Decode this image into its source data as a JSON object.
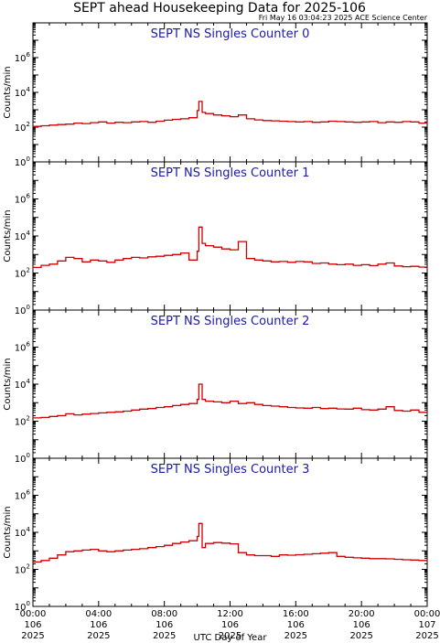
{
  "header": {
    "title": "SEPT ahead Housekeeping Data for 2025-106",
    "timestamp": "Fri May 16 03:04:23 2025 ACE Science Center"
  },
  "colors": {
    "series": "#cc0000",
    "panel_title": "#1a1aa6",
    "axis": "#000000"
  },
  "chart_data": [
    {
      "type": "line",
      "title": "SEPT NS Singles Counter 0",
      "ylabel": "Counts/min",
      "yscale": "log",
      "ylim": [
        1,
        100000000
      ],
      "yticks": [
        {
          "value": 1,
          "base": "10",
          "exp": "0"
        },
        {
          "value": 100,
          "base": "10",
          "exp": "2"
        },
        {
          "value": 10000,
          "base": "10",
          "exp": "4"
        },
        {
          "value": 1000000,
          "base": "10",
          "exp": "6"
        }
      ],
      "xlim": [
        0,
        24
      ],
      "x": [
        0,
        0.5,
        1,
        1.5,
        2,
        2.5,
        3,
        3.5,
        4,
        4.5,
        5,
        5.5,
        6,
        6.5,
        7,
        7.5,
        8,
        8.5,
        9,
        9.5,
        10,
        10.1,
        10.3,
        10.5,
        11,
        11.5,
        12,
        12.5,
        13,
        13.5,
        14,
        14.5,
        15,
        15.5,
        16,
        16.5,
        17,
        17.5,
        18,
        18.5,
        19,
        19.5,
        20,
        20.5,
        21,
        21.5,
        22,
        22.5,
        23,
        23.5
      ],
      "y": [
        110,
        120,
        130,
        140,
        150,
        170,
        160,
        180,
        200,
        170,
        190,
        180,
        200,
        210,
        190,
        220,
        250,
        280,
        300,
        350,
        900,
        3000,
        700,
        600,
        500,
        450,
        400,
        500,
        300,
        260,
        240,
        230,
        220,
        210,
        200,
        210,
        190,
        200,
        220,
        210,
        200,
        190,
        200,
        210,
        180,
        200,
        190,
        210,
        200,
        170
      ]
    },
    {
      "type": "line",
      "title": "SEPT NS Singles Counter 1",
      "ylabel": "Counts/min",
      "yscale": "log",
      "ylim": [
        1,
        100000000
      ],
      "yticks": [
        {
          "value": 1,
          "base": "10",
          "exp": "0"
        },
        {
          "value": 100,
          "base": "10",
          "exp": "2"
        },
        {
          "value": 10000,
          "base": "10",
          "exp": "4"
        },
        {
          "value": 1000000,
          "base": "10",
          "exp": "6"
        }
      ],
      "xlim": [
        0,
        24
      ],
      "x": [
        0,
        0.5,
        1,
        1.5,
        2,
        2.5,
        3,
        3.5,
        4,
        4.5,
        5,
        5.5,
        6,
        6.5,
        7,
        7.5,
        8,
        8.5,
        9,
        9.5,
        10,
        10.1,
        10.3,
        10.5,
        11,
        11.5,
        12,
        12.5,
        13,
        13.5,
        14,
        14.5,
        15,
        15.5,
        16,
        16.5,
        17,
        17.5,
        18,
        18.5,
        19,
        19.5,
        20,
        20.5,
        21,
        21.5,
        22,
        22.5,
        23,
        23.5
      ],
      "y": [
        200,
        260,
        300,
        450,
        700,
        600,
        400,
        500,
        450,
        380,
        500,
        600,
        700,
        650,
        750,
        800,
        900,
        1000,
        1200,
        500,
        1500,
        30000,
        4000,
        3000,
        2500,
        2000,
        1800,
        5000,
        600,
        500,
        450,
        400,
        420,
        380,
        420,
        400,
        330,
        350,
        300,
        280,
        300,
        260,
        280,
        250,
        300,
        350,
        240,
        220,
        230,
        210
      ]
    },
    {
      "type": "line",
      "title": "SEPT NS Singles Counter 2",
      "ylabel": "Counts/min",
      "yscale": "log",
      "ylim": [
        1,
        100000000
      ],
      "yticks": [
        {
          "value": 1,
          "base": "10",
          "exp": "0"
        },
        {
          "value": 100,
          "base": "10",
          "exp": "2"
        },
        {
          "value": 10000,
          "base": "10",
          "exp": "4"
        },
        {
          "value": 1000000,
          "base": "10",
          "exp": "6"
        }
      ],
      "xlim": [
        0,
        24
      ],
      "x": [
        0,
        0.5,
        1,
        1.5,
        2,
        2.5,
        3,
        3.5,
        4,
        4.5,
        5,
        5.5,
        6,
        6.5,
        7,
        7.5,
        8,
        8.5,
        9,
        9.5,
        10,
        10.1,
        10.3,
        10.5,
        11,
        11.5,
        12,
        12.5,
        13,
        13.5,
        14,
        14.5,
        15,
        15.5,
        16,
        16.5,
        17,
        17.5,
        18,
        18.5,
        19,
        19.5,
        20,
        20.5,
        21,
        21.5,
        22,
        22.5,
        23,
        23.5
      ],
      "y": [
        150,
        160,
        180,
        200,
        250,
        220,
        240,
        260,
        280,
        300,
        320,
        350,
        400,
        450,
        480,
        550,
        600,
        700,
        800,
        900,
        1500,
        10000,
        1500,
        1200,
        1100,
        1000,
        1200,
        900,
        1000,
        800,
        700,
        650,
        600,
        550,
        520,
        500,
        550,
        480,
        500,
        460,
        450,
        500,
        420,
        400,
        450,
        600,
        380,
        350,
        400,
        300
      ]
    },
    {
      "type": "line",
      "title": "SEPT NS Singles Counter 3",
      "ylabel": "Counts/min",
      "yscale": "log",
      "ylim": [
        1,
        100000000
      ],
      "yticks": [
        {
          "value": 1,
          "base": "10",
          "exp": "0"
        },
        {
          "value": 100,
          "base": "10",
          "exp": "2"
        },
        {
          "value": 10000,
          "base": "10",
          "exp": "4"
        },
        {
          "value": 1000000,
          "base": "10",
          "exp": "6"
        }
      ],
      "xlim": [
        0,
        24
      ],
      "x": [
        0,
        0.5,
        1,
        1.5,
        2,
        2.5,
        3,
        3.5,
        4,
        4.5,
        5,
        5.5,
        6,
        6.5,
        7,
        7.5,
        8,
        8.5,
        9,
        9.5,
        10,
        10.1,
        10.3,
        10.5,
        11,
        11.5,
        12,
        12.5,
        13,
        13.5,
        14,
        14.5,
        15,
        15.5,
        16,
        16.5,
        17,
        17.5,
        18,
        18.5,
        19,
        19.5,
        20,
        20.5,
        21,
        21.5,
        22,
        22.5,
        23,
        23.5
      ],
      "y": [
        250,
        300,
        400,
        600,
        900,
        1000,
        1100,
        1200,
        1000,
        900,
        1000,
        1100,
        1200,
        1300,
        1500,
        1700,
        2000,
        2500,
        3000,
        3500,
        6000,
        30000,
        1500,
        2500,
        2800,
        2600,
        2400,
        800,
        600,
        550,
        550,
        500,
        600,
        580,
        620,
        650,
        700,
        750,
        800,
        500,
        450,
        420,
        400,
        380,
        380,
        370,
        350,
        330,
        320,
        300
      ]
    }
  ],
  "xaxis": {
    "label": "UTC Day of Year",
    "ticks": [
      {
        "time": "00:00",
        "day": "106",
        "year": "2025",
        "hour": 0
      },
      {
        "time": "04:00",
        "day": "106",
        "year": "2025",
        "hour": 4
      },
      {
        "time": "08:00",
        "day": "106",
        "year": "2025",
        "hour": 8
      },
      {
        "time": "12:00",
        "day": "106",
        "year": "2025",
        "hour": 12
      },
      {
        "time": "16:00",
        "day": "106",
        "year": "2025",
        "hour": 16
      },
      {
        "time": "20:00",
        "day": "106",
        "year": "2025",
        "hour": 20
      },
      {
        "time": "00:00",
        "day": "107",
        "year": "2025",
        "hour": 24
      }
    ]
  }
}
